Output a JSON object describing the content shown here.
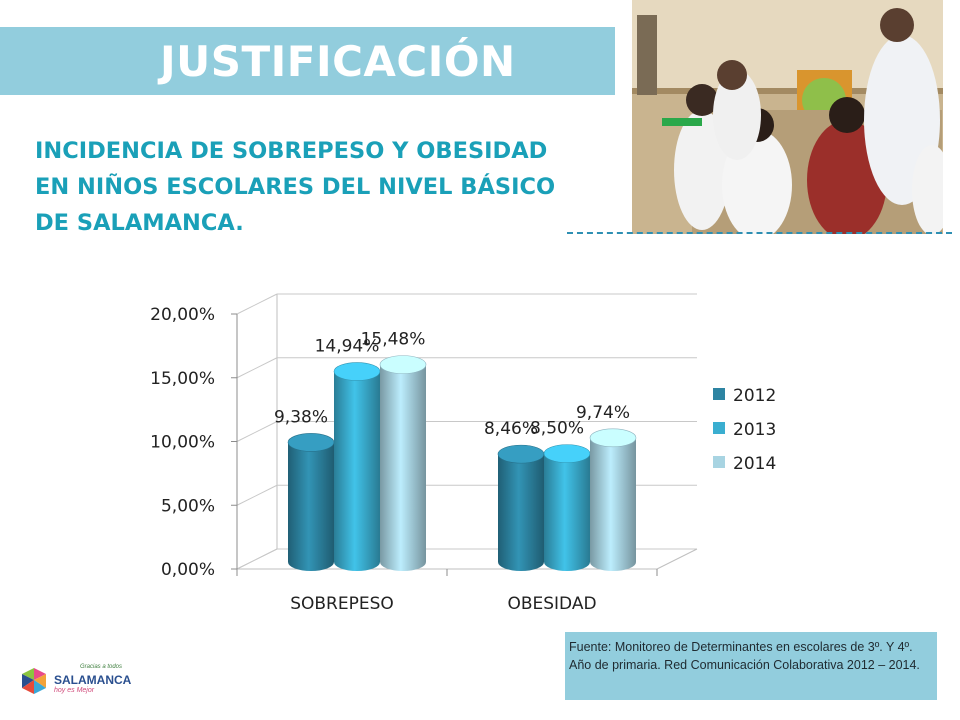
{
  "header": {
    "title": "JUSTIFICACIÓN",
    "subtitle_lines": [
      "INCIDENCIA DE SOBREPESO Y OBESIDAD",
      "EN NIÑOS ESCOLARES DEL NIVEL BÁSICO",
      "DE SALAMANCA."
    ]
  },
  "colors": {
    "banner": "#92cddd",
    "subtitle": "#1aa0b8",
    "series_2012": "#2d84a2",
    "series_2013": "#3aaed0",
    "series_2014": "#a8d4e2"
  },
  "chart_data": {
    "type": "bar",
    "categories": [
      "SOBREPESO",
      "OBESIDAD"
    ],
    "series": [
      {
        "name": "2012",
        "values": [
          9.38,
          8.46
        ],
        "labels": [
          "9,38%",
          "8,46%"
        ]
      },
      {
        "name": "2013",
        "values": [
          14.94,
          8.5
        ],
        "labels": [
          "14,94%",
          "8,50%"
        ]
      },
      {
        "name": "2014",
        "values": [
          15.48,
          9.74
        ],
        "labels": [
          "15,48%",
          "9,74%"
        ]
      }
    ],
    "yticks": [
      "0,00%",
      "5,00%",
      "10,00%",
      "15,00%",
      "20,00%"
    ],
    "ylim": [
      0,
      20
    ],
    "grid": true,
    "legend_position": "right",
    "style": "3d-cylinder"
  },
  "source": {
    "text": "Fuente: Monitoreo de Determinantes en escolares de 3º. Y 4º. Año de primaria. Red Comunicación Colaborativa 2012 – 2014."
  },
  "logo": {
    "name": "SALAMANCA",
    "top_text": "Gracias a todos",
    "bottom_text": "hoy es Mejor"
  }
}
